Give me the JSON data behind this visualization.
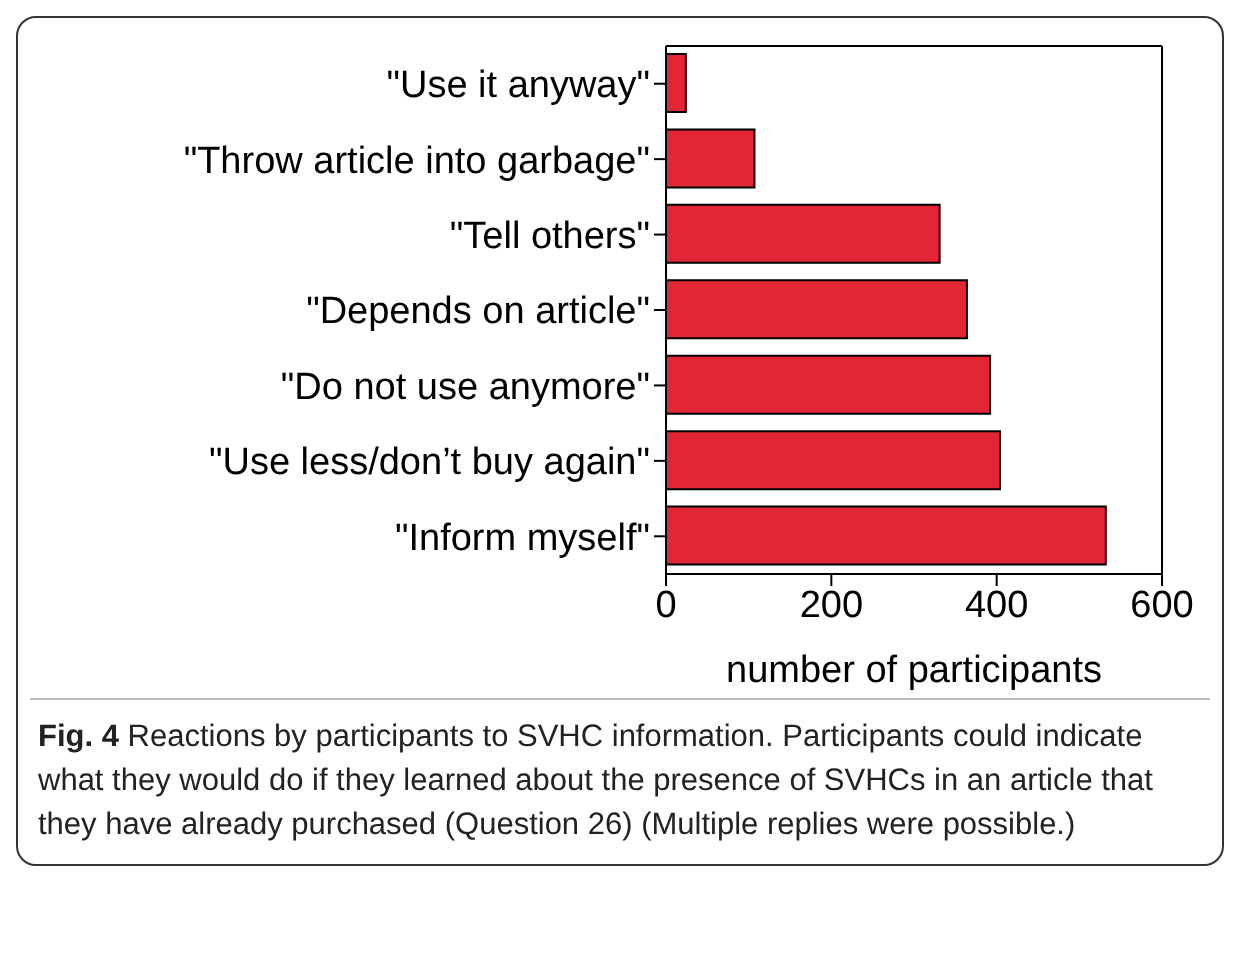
{
  "chart_data": {
    "type": "bar",
    "orientation": "horizontal",
    "categories": [
      "\"Use it anyway\"",
      "\"Throw article into garbage\"",
      "\"Tell others\"",
      "\"Depends on article\"",
      "\"Do not use anymore\"",
      "\"Use less/don’t buy again\"",
      "\"Inform myself\""
    ],
    "values": [
      24,
      107,
      331,
      364,
      392,
      404,
      532
    ],
    "color": "#e32636",
    "xlim": [
      0,
      600
    ],
    "xticks": [
      0,
      200,
      400,
      600
    ],
    "xlabel": "number of participants",
    "grid": false,
    "annotations": [
      "Fig. 4 Reactions by participants to SVHC information. Participants could indicate what they would do if they learned about the presence of SVHCs in an article that they have already purchased (Question 26) (Multiple replies were possible.)"
    ]
  }
}
